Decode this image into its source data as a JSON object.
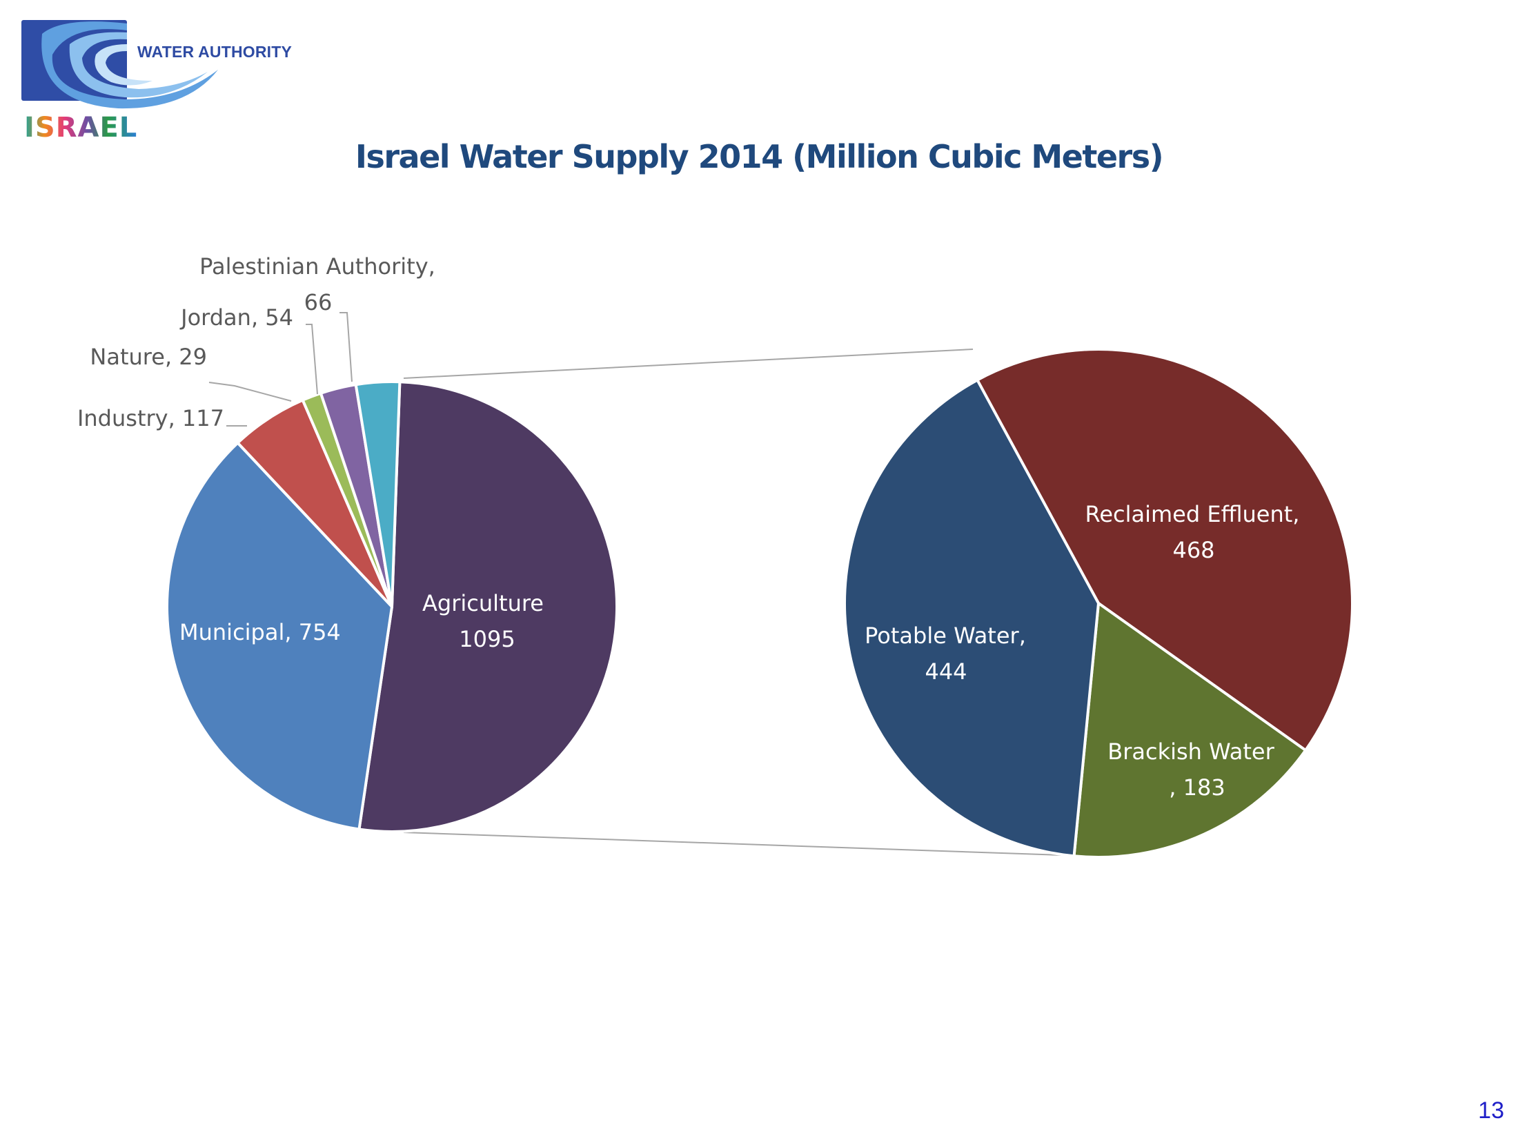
{
  "header": {
    "logo_text": "WATER AUTHORITY",
    "logo_israel": "ISRAEL",
    "title": "Israel Water Supply 2014 (Million Cubic Meters)"
  },
  "footer": {
    "page_number": "13"
  },
  "chart_data": [
    {
      "type": "pie",
      "title": "Israel Water Supply 2014 (Million Cubic Meters)",
      "name": "Consumers",
      "categories": [
        "Agriculture",
        "Municipal",
        "Industry",
        "Nature",
        "Jordan",
        "Palestinian Authority"
      ],
      "values": [
        1095,
        754,
        117,
        29,
        54,
        66
      ],
      "labels": [
        "Agriculture 1095",
        "Municipal, 754",
        "Industry, 117",
        "Nature, 29",
        "Jordan, 54",
        "Palestinian Authority, 66"
      ],
      "colors": [
        "#4e3a62",
        "#4f81bd",
        "#c0504d",
        "#9bbb59",
        "#8064a2",
        "#4bacc6"
      ],
      "legend": "none"
    },
    {
      "type": "pie",
      "name": "Agriculture breakdown",
      "categories": [
        "Reclaimed Effluent",
        "Brackish Water",
        "Potable Water"
      ],
      "values": [
        468,
        183,
        444
      ],
      "labels": [
        "Reclaimed Effluent, 468",
        "Brackish Water, 183",
        "Potable Water, 444"
      ],
      "colors": [
        "#772c2a",
        "#5f7530",
        "#2c4d75"
      ],
      "legend": "none"
    }
  ]
}
